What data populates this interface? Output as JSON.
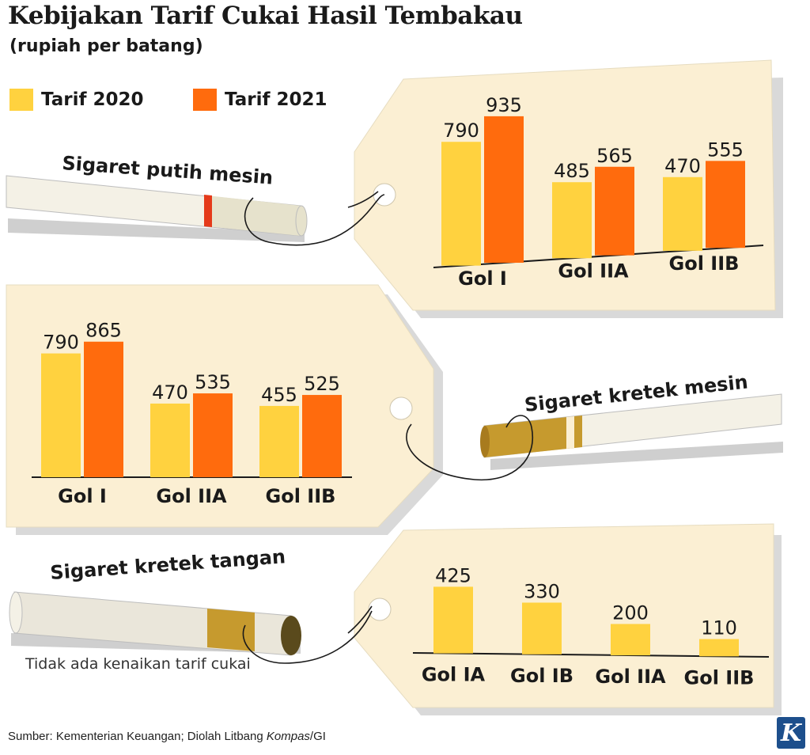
{
  "title": "Kebijakan Tarif Cukai Hasil Tembakau",
  "subtitle": "(rupiah per batang)",
  "legend": {
    "series_2020": "Tarif 2020",
    "series_2021": "Tarif 2021",
    "color_2020": "#FFD23F",
    "color_2021": "#FF6B0D"
  },
  "colors": {
    "tag": "#FBEFD3",
    "tag_shadow": "#D9D9D9",
    "bar_2020": "#FFD23F",
    "bar_2021": "#FF6B0D"
  },
  "cigarettes": {
    "spm_label": "Sigaret putih mesin",
    "skm_label": "Sigaret kretek mesin",
    "skt_label": "Sigaret kretek tangan"
  },
  "note": "Tidak ada kenaikan tarif cukai",
  "source": {
    "prefix": "Sumber: Kementerian Keuangan; Diolah Litbang ",
    "italic": "Kompas",
    "suffix": "/GI"
  },
  "logo": "K",
  "chart_data": [
    {
      "type": "bar",
      "name": "Sigaret putih mesin",
      "categories": [
        "Gol I",
        "Gol IIA",
        "Gol IIB"
      ],
      "series": [
        {
          "name": "Tarif 2020",
          "values": [
            790,
            485,
            470
          ]
        },
        {
          "name": "Tarif 2021",
          "values": [
            935,
            565,
            555
          ]
        }
      ]
    },
    {
      "type": "bar",
      "name": "Sigaret kretek mesin",
      "categories": [
        "Gol I",
        "Gol IIA",
        "Gol IIB"
      ],
      "series": [
        {
          "name": "Tarif 2020",
          "values": [
            790,
            470,
            455
          ]
        },
        {
          "name": "Tarif 2021",
          "values": [
            865,
            535,
            525
          ]
        }
      ]
    },
    {
      "type": "bar",
      "name": "Sigaret kretek tangan",
      "categories": [
        "Gol IA",
        "Gol IB",
        "Gol IIA",
        "Gol IIB"
      ],
      "series": [
        {
          "name": "Tarif 2020",
          "values": [
            425,
            330,
            200,
            110
          ]
        }
      ]
    }
  ]
}
